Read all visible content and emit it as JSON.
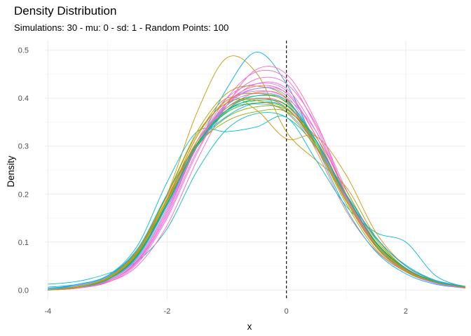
{
  "chart_data": {
    "type": "line",
    "title": "Density Distribution",
    "subtitle": "Simulations: 30 - mu: 0 - sd: 1 - Random Points: 100",
    "xlabel": "x",
    "ylabel": "Density",
    "xlim": [
      -4.05,
      3.0
    ],
    "ylim": [
      -0.02,
      0.52
    ],
    "x_ticks": [
      -4,
      -2,
      0,
      2
    ],
    "y_ticks": [
      0.0,
      0.1,
      0.2,
      0.3,
      0.4,
      0.5
    ],
    "x_tick_labels": [
      "-4",
      "-2",
      "0",
      "2"
    ],
    "y_tick_labels": [
      "0.0",
      "0.1",
      "0.2",
      "0.3",
      "0.4",
      "0.5"
    ],
    "grid": true,
    "legend": "none",
    "reference_line": {
      "x": 0,
      "style": "dashed",
      "color": "#000000"
    },
    "curve_x_range": [
      -4.0,
      3.0
    ],
    "series": [
      {
        "color": "#F8766D",
        "values": [
          0,
          0.01,
          0.028,
          0.085,
          0.195,
          0.305,
          0.375,
          0.412,
          0.398,
          0.29,
          0.165,
          0.082,
          0.038,
          0.015,
          0.005
        ]
      },
      {
        "color": "#00BFC4",
        "values": [
          0.012,
          0.018,
          0.034,
          0.06,
          0.128,
          0.248,
          0.335,
          0.368,
          0.36,
          0.298,
          0.196,
          0.108,
          0.052,
          0.02,
          0.006
        ]
      },
      {
        "color": "#C49A00",
        "values": [
          0,
          0.008,
          0.026,
          0.08,
          0.2,
          0.37,
          0.484,
          0.452,
          0.33,
          0.27,
          0.215,
          0.11,
          0.045,
          0.02,
          0.008
        ]
      },
      {
        "color": "#00A9FF",
        "values": [
          0.002,
          0.01,
          0.028,
          0.082,
          0.18,
          0.298,
          0.42,
          0.496,
          0.43,
          0.3,
          0.17,
          0.08,
          0.034,
          0.012,
          0.004
        ]
      },
      {
        "color": "#FF61C3",
        "values": [
          0,
          0.004,
          0.018,
          0.06,
          0.16,
          0.3,
          0.4,
          0.455,
          0.44,
          0.34,
          0.2,
          0.09,
          0.04,
          0.015,
          0.004
        ]
      },
      {
        "color": "#7CAE00",
        "values": [
          0,
          0.006,
          0.024,
          0.078,
          0.188,
          0.298,
          0.36,
          0.382,
          0.376,
          0.31,
          0.198,
          0.1,
          0.044,
          0.016,
          0.005
        ]
      },
      {
        "color": "#00BE67",
        "values": [
          0,
          0.006,
          0.022,
          0.074,
          0.18,
          0.302,
          0.38,
          0.405,
          0.392,
          0.31,
          0.19,
          0.092,
          0.04,
          0.016,
          0.005
        ]
      },
      {
        "color": "#C77CFF",
        "values": [
          0,
          0.006,
          0.02,
          0.068,
          0.175,
          0.3,
          0.39,
          0.42,
          0.41,
          0.32,
          0.192,
          0.095,
          0.042,
          0.016,
          0.005
        ]
      },
      {
        "color": "#F564E3",
        "values": [
          0,
          0.004,
          0.016,
          0.055,
          0.15,
          0.285,
          0.39,
          0.44,
          0.43,
          0.345,
          0.21,
          0.1,
          0.04,
          0.014,
          0.004
        ]
      },
      {
        "color": "#619CFF",
        "values": [
          0.004,
          0.01,
          0.028,
          0.08,
          0.19,
          0.31,
          0.375,
          0.388,
          0.372,
          0.3,
          0.19,
          0.095,
          0.04,
          0.02,
          0.006
        ]
      },
      {
        "color": "#00B9E3",
        "values": [
          0.002,
          0.012,
          0.03,
          0.092,
          0.225,
          0.33,
          0.33,
          0.34,
          0.36,
          0.27,
          0.175,
          0.12,
          0.1,
          0.03,
          0.006
        ]
      },
      {
        "color": "#D39200",
        "values": [
          0,
          0.008,
          0.026,
          0.082,
          0.19,
          0.32,
          0.4,
          0.375,
          0.315,
          0.32,
          0.24,
          0.12,
          0.05,
          0.02,
          0.006
        ]
      },
      {
        "color": "#93AA00",
        "values": [
          0,
          0.005,
          0.022,
          0.072,
          0.185,
          0.3,
          0.352,
          0.372,
          0.372,
          0.318,
          0.208,
          0.105,
          0.046,
          0.016,
          0.005
        ]
      },
      {
        "color": "#DB72FB",
        "values": [
          0,
          0.004,
          0.02,
          0.065,
          0.17,
          0.31,
          0.4,
          0.43,
          0.415,
          0.32,
          0.19,
          0.09,
          0.038,
          0.014,
          0.004
        ]
      },
      {
        "color": "#FF62BC",
        "values": [
          0,
          0.004,
          0.016,
          0.05,
          0.135,
          0.27,
          0.385,
          0.46,
          0.45,
          0.35,
          0.2,
          0.09,
          0.04,
          0.016,
          0.004
        ]
      },
      {
        "color": "#00C19F",
        "values": [
          0,
          0.006,
          0.022,
          0.074,
          0.182,
          0.298,
          0.372,
          0.398,
          0.386,
          0.31,
          0.2,
          0.098,
          0.045,
          0.018,
          0.005
        ]
      },
      {
        "color": "#E76BF3",
        "values": [
          0,
          0.004,
          0.018,
          0.06,
          0.16,
          0.3,
          0.39,
          0.415,
          0.4,
          0.33,
          0.2,
          0.1,
          0.046,
          0.018,
          0.005
        ]
      },
      {
        "color": "#A3A500",
        "values": [
          0,
          0.006,
          0.024,
          0.08,
          0.2,
          0.33,
          0.41,
          0.425,
          0.4,
          0.3,
          0.18,
          0.085,
          0.038,
          0.016,
          0.005
        ]
      },
      {
        "color": "#00B0F6",
        "values": [
          0.006,
          0.012,
          0.03,
          0.085,
          0.2,
          0.305,
          0.362,
          0.39,
          0.38,
          0.3,
          0.2,
          0.11,
          0.05,
          0.02,
          0.006
        ]
      },
      {
        "color": "#FF6C91",
        "values": [
          0,
          0.005,
          0.02,
          0.07,
          0.18,
          0.31,
          0.38,
          0.4,
          0.385,
          0.3,
          0.19,
          0.1,
          0.045,
          0.018,
          0.005
        ]
      },
      {
        "color": "#9590FF",
        "values": [
          0,
          0.005,
          0.02,
          0.068,
          0.178,
          0.305,
          0.385,
          0.41,
          0.395,
          0.305,
          0.19,
          0.095,
          0.042,
          0.016,
          0.005
        ]
      },
      {
        "color": "#39B600",
        "values": [
          0,
          0.006,
          0.024,
          0.076,
          0.19,
          0.305,
          0.37,
          0.39,
          0.378,
          0.305,
          0.195,
          0.098,
          0.044,
          0.017,
          0.005
        ]
      },
      {
        "color": "#EA8331",
        "values": [
          0,
          0.006,
          0.024,
          0.078,
          0.19,
          0.31,
          0.38,
          0.4,
          0.38,
          0.3,
          0.19,
          0.095,
          0.043,
          0.017,
          0.005
        ]
      },
      {
        "color": "#FD61D1",
        "values": [
          0,
          0.004,
          0.018,
          0.058,
          0.155,
          0.29,
          0.385,
          0.43,
          0.42,
          0.33,
          0.2,
          0.095,
          0.042,
          0.016,
          0.004
        ]
      },
      {
        "color": "#00C0B8",
        "values": [
          0,
          0.006,
          0.022,
          0.07,
          0.178,
          0.3,
          0.375,
          0.405,
          0.395,
          0.312,
          0.198,
          0.1,
          0.045,
          0.018,
          0.005
        ]
      },
      {
        "color": "#D89000",
        "values": [
          0,
          0.006,
          0.024,
          0.076,
          0.19,
          0.32,
          0.395,
          0.41,
          0.39,
          0.3,
          0.185,
          0.09,
          0.04,
          0.016,
          0.005
        ]
      },
      {
        "color": "#8F91FF",
        "values": [
          0,
          0.005,
          0.02,
          0.065,
          0.17,
          0.3,
          0.385,
          0.42,
          0.405,
          0.31,
          0.19,
          0.094,
          0.042,
          0.016,
          0.005
        ]
      },
      {
        "color": "#FF6A98",
        "values": [
          0,
          0.004,
          0.018,
          0.062,
          0.165,
          0.3,
          0.39,
          0.425,
          0.41,
          0.32,
          0.195,
          0.095,
          0.042,
          0.016,
          0.004
        ]
      },
      {
        "color": "#00BD5C",
        "values": [
          0,
          0.006,
          0.022,
          0.072,
          0.18,
          0.302,
          0.375,
          0.395,
          0.385,
          0.31,
          0.198,
          0.1,
          0.045,
          0.017,
          0.005
        ]
      },
      {
        "color": "#ABA300",
        "values": [
          0,
          0.006,
          0.026,
          0.082,
          0.198,
          0.325,
          0.39,
          0.395,
          0.37,
          0.295,
          0.188,
          0.094,
          0.042,
          0.016,
          0.005
        ]
      }
    ]
  }
}
